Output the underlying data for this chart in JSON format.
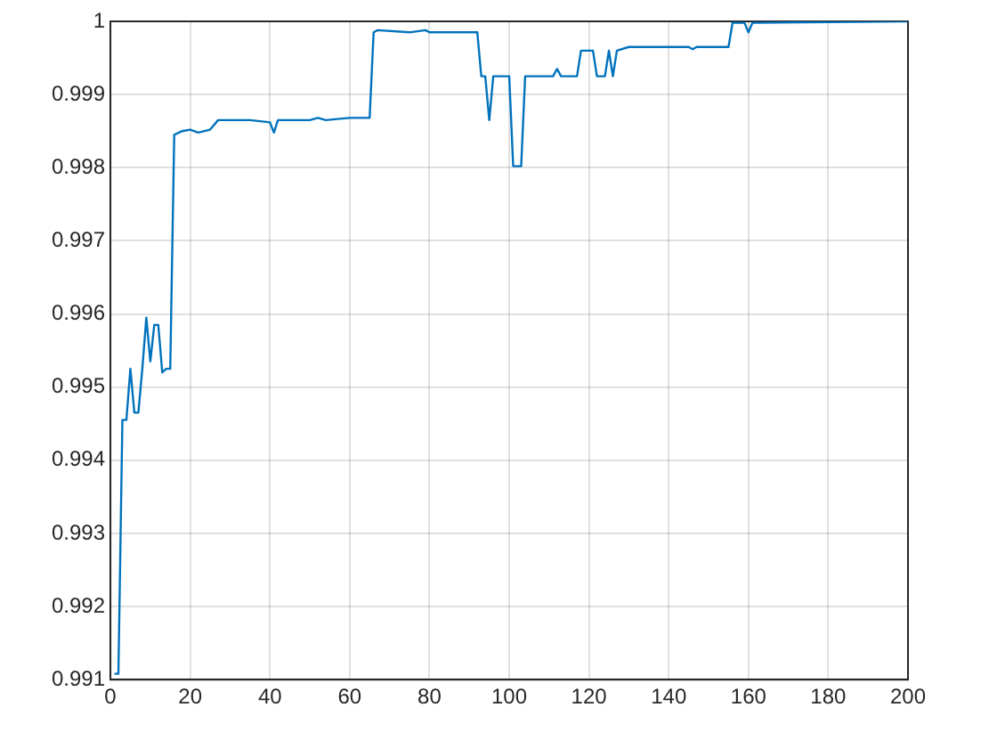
{
  "chart_data": {
    "type": "line",
    "x": [
      1,
      2,
      3,
      4,
      5,
      6,
      7,
      8,
      9,
      10,
      11,
      12,
      13,
      14,
      15,
      16,
      18,
      20,
      22,
      25,
      27,
      35,
      40,
      41,
      42,
      50,
      52,
      54,
      60,
      65,
      66,
      67,
      75,
      79,
      80,
      92,
      93,
      94,
      95,
      96,
      100,
      101,
      103,
      104,
      111,
      112,
      113,
      117,
      118,
      121,
      122,
      124,
      125,
      126,
      127,
      130,
      145,
      146,
      147,
      155,
      156,
      159,
      160,
      161,
      200
    ],
    "series": [
      {
        "color": "#0072bd",
        "values": [
          0.99108,
          0.99108,
          0.99455,
          0.99455,
          0.99525,
          0.99465,
          0.99465,
          0.99525,
          0.99595,
          0.99535,
          0.99585,
          0.99585,
          0.9952,
          0.99525,
          0.99525,
          0.99845,
          0.9985,
          0.99852,
          0.99848,
          0.99852,
          0.99865,
          0.99865,
          0.99862,
          0.99848,
          0.99865,
          0.99865,
          0.99868,
          0.99865,
          0.99868,
          0.99868,
          0.99985,
          0.99988,
          0.99985,
          0.99988,
          0.99985,
          0.99985,
          0.99925,
          0.99925,
          0.99865,
          0.99925,
          0.99925,
          0.99802,
          0.99802,
          0.99925,
          0.99925,
          0.99935,
          0.99925,
          0.99925,
          0.9996,
          0.9996,
          0.99925,
          0.99925,
          0.9996,
          0.99925,
          0.9996,
          0.99965,
          0.99965,
          0.99962,
          0.99965,
          0.99965,
          0.99998,
          0.99998,
          0.99985,
          0.99998,
          1.0
        ]
      }
    ],
    "xlim": [
      0,
      200
    ],
    "xticks": [
      0,
      20,
      40,
      60,
      80,
      100,
      120,
      140,
      160,
      180,
      200
    ],
    "ylim": [
      0.991,
      1
    ],
    "yticks": [
      0.991,
      0.992,
      0.993,
      0.994,
      0.995,
      0.996,
      0.997,
      0.998,
      0.999,
      1
    ],
    "grid": true,
    "legend": false,
    "marker": "none",
    "line_style": "solid"
  }
}
